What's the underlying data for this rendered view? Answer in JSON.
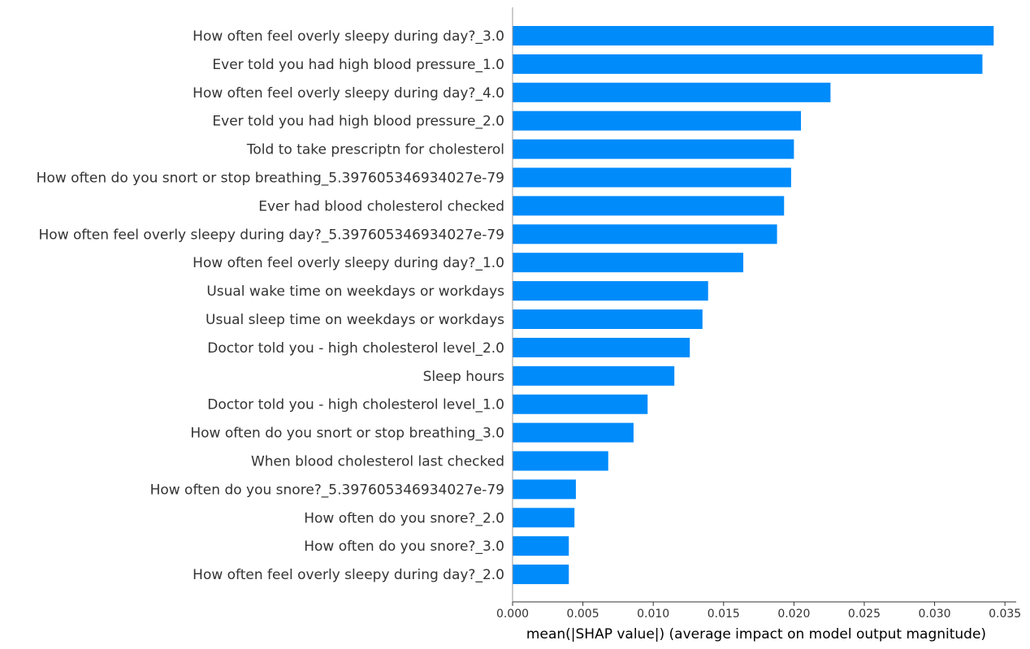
{
  "chart_data": {
    "type": "bar",
    "orientation": "horizontal",
    "xlabel": "mean(|SHAP value|) (average impact on model output magnitude)",
    "ylabel": "",
    "title": "",
    "xlim": [
      0,
      0.0358
    ],
    "xticks": [
      "0.000",
      "0.005",
      "0.010",
      "0.015",
      "0.020",
      "0.025",
      "0.030",
      "0.035"
    ],
    "grid": false,
    "bar_color": "#008bfb",
    "categories": [
      "How often feel overly sleepy during day?_3.0",
      "Ever told you had high blood pressure_1.0",
      "How often feel overly sleepy during day?_4.0",
      "Ever told you had high blood pressure_2.0",
      "Told to take prescriptn for cholesterol",
      "How often do you snort or stop breathing_5.397605346934027e-79",
      "Ever had blood cholesterol checked",
      "How often feel overly sleepy during day?_5.397605346934027e-79",
      "How often feel overly sleepy during day?_1.0",
      "Usual wake time on weekdays or workdays",
      "Usual sleep time on weekdays or workdays",
      "Doctor told you - high cholesterol level_2.0",
      "Sleep hours",
      "Doctor told you - high cholesterol level_1.0",
      "How often do you snort or stop breathing_3.0",
      "When blood cholesterol last checked",
      "How often do you snore?_5.397605346934027e-79",
      "How often do you snore?_2.0",
      "How often do you snore?_3.0",
      "How often feel overly sleepy during day?_2.0"
    ],
    "values": [
      0.0342,
      0.0334,
      0.0226,
      0.0205,
      0.02,
      0.0198,
      0.0193,
      0.0188,
      0.0164,
      0.0139,
      0.0135,
      0.0126,
      0.0115,
      0.0096,
      0.0086,
      0.0068,
      0.0045,
      0.0044,
      0.004,
      0.004
    ]
  }
}
